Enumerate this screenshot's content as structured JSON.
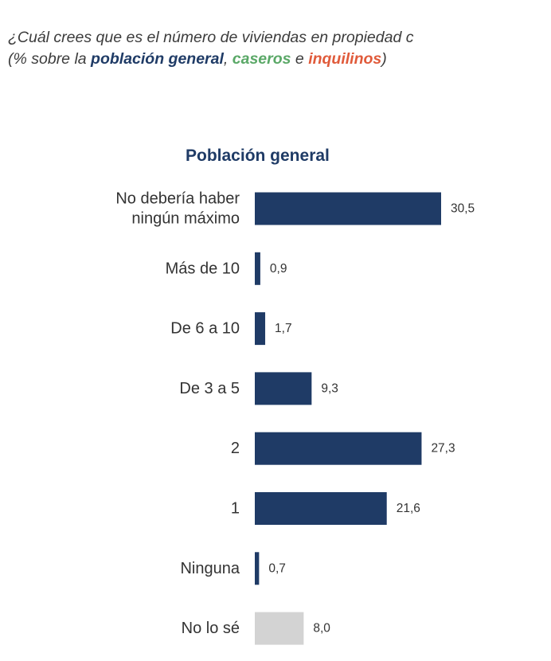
{
  "question": {
    "line1": "¿Cuál crees que es el número de viviendas en propiedad c",
    "line2_prefix": "(% sobre la ",
    "group1": "población general",
    "sep1": ", ",
    "group2": "caseros",
    "sep2": " e ",
    "group3": "inquilinos",
    "line2_suffix": ")"
  },
  "colors": {
    "primary_bar": "#1f3b66",
    "unknown_bar": "#d3d3d3",
    "group1": "#1f3b66",
    "group2": "#5aa867",
    "group3": "#e05a3a"
  },
  "chart_data": {
    "type": "bar",
    "orientation": "horizontal",
    "title": "Población general",
    "categories": [
      [
        "No debería haber",
        "ningún máximo"
      ],
      [
        "Más de 10"
      ],
      [
        "De 6 a 10"
      ],
      [
        "De 3 a 5"
      ],
      [
        "2"
      ],
      [
        "1"
      ],
      [
        "Ninguna"
      ],
      [
        "No lo sé"
      ]
    ],
    "values": [
      30.5,
      0.9,
      1.7,
      9.3,
      27.3,
      21.6,
      0.7,
      8.0
    ],
    "value_labels": [
      "30,5",
      "0,9",
      "1,7",
      "9,3",
      "27,3",
      "21,6",
      "0,7",
      "8,0"
    ],
    "highlighted_unknown_index": 7,
    "xlim": [
      0,
      35
    ],
    "grid": false,
    "axes_visible": false
  }
}
